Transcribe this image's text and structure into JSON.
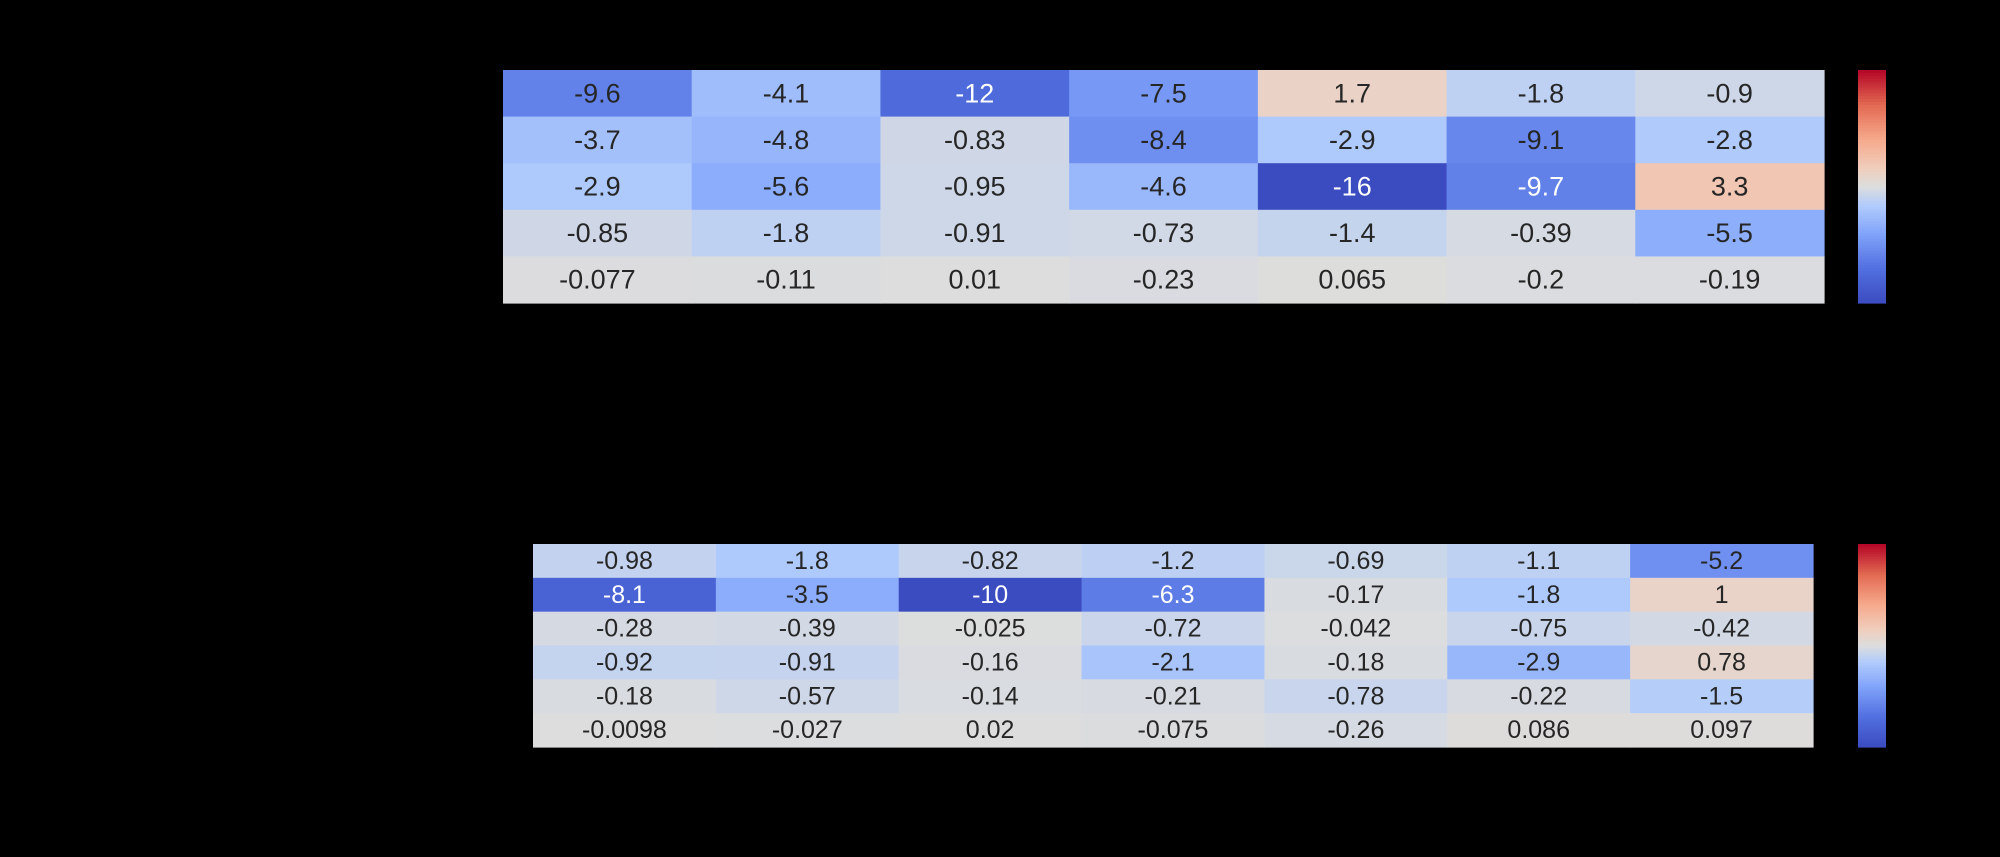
{
  "chart_data": [
    {
      "type": "heatmap",
      "title": "",
      "xlabel": "",
      "ylabel": "",
      "rows": 5,
      "cols": 7,
      "values": [
        [
          -9.6,
          -4.1,
          -12,
          -7.5,
          1.7,
          -1.8,
          -0.9
        ],
        [
          -3.7,
          -4.8,
          -0.83,
          -8.4,
          -2.9,
          -9.1,
          -2.8
        ],
        [
          -2.9,
          -5.6,
          -0.95,
          -4.6,
          -16,
          -9.7,
          3.3
        ],
        [
          -0.85,
          -1.8,
          -0.91,
          -0.73,
          -1.4,
          -0.39,
          -5.5
        ],
        [
          -0.077,
          -0.11,
          0.01,
          -0.23,
          0.065,
          -0.2,
          -0.19
        ]
      ],
      "labels": [
        [
          "-9.6",
          "-4.1",
          "-12",
          "-7.5",
          "1.7",
          "-1.8",
          "-0.9"
        ],
        [
          "-3.7",
          "-4.8",
          "-0.83",
          "-8.4",
          "-2.9",
          "-9.1",
          "-2.8"
        ],
        [
          "-2.9",
          "-5.6",
          "-0.95",
          "-4.6",
          "-16",
          "-9.7",
          "3.3"
        ],
        [
          "-0.85",
          "-1.8",
          "-0.91",
          "-0.73",
          "-1.4",
          "-0.39",
          "-5.5"
        ],
        [
          "-0.077",
          "-0.11",
          "0.01",
          "-0.23",
          "0.065",
          "-0.2",
          "-0.19"
        ]
      ],
      "colormap": "coolwarm",
      "vmin": -16,
      "vmax": 16,
      "colorbar": true
    },
    {
      "type": "heatmap",
      "title": "",
      "xlabel": "",
      "ylabel": "",
      "rows": 6,
      "cols": 7,
      "values": [
        [
          -0.98,
          -1.8,
          -0.82,
          -1.2,
          -0.69,
          -1.1,
          -5.2
        ],
        [
          -8.1,
          -3.5,
          -10,
          -6.3,
          -0.17,
          -1.8,
          1
        ],
        [
          -0.28,
          -0.39,
          -0.025,
          -0.72,
          -0.042,
          -0.75,
          -0.42
        ],
        [
          -0.92,
          -0.91,
          -0.16,
          -2.1,
          -0.18,
          -2.9,
          0.78
        ],
        [
          -0.18,
          -0.57,
          -0.14,
          -0.21,
          -0.78,
          -0.22,
          -1.5
        ],
        [
          -0.0098,
          -0.027,
          0.02,
          -0.075,
          -0.26,
          0.086,
          0.097
        ]
      ],
      "labels": [
        [
          "-0.98",
          "-1.8",
          "-0.82",
          "-1.2",
          "-0.69",
          "-1.1",
          "-5.2"
        ],
        [
          "-8.1",
          "-3.5",
          "-10",
          "-6.3",
          "-0.17",
          "-1.8",
          "1"
        ],
        [
          "-0.28",
          "-0.39",
          "-0.025",
          "-0.72",
          "-0.042",
          "-0.75",
          "-0.42"
        ],
        [
          "-0.92",
          "-0.91",
          "-0.16",
          "-2.1",
          "-0.18",
          "-2.9",
          "0.78"
        ],
        [
          "-0.18",
          "-0.57",
          "-0.14",
          "-0.21",
          "-0.78",
          "-0.22",
          "-1.5"
        ],
        [
          "-0.0098",
          "-0.027",
          "0.02",
          "-0.075",
          "-0.26",
          "0.086",
          "0.097"
        ]
      ],
      "colormap": "coolwarm",
      "vmin": -10,
      "vmax": 10,
      "colorbar": true
    }
  ]
}
